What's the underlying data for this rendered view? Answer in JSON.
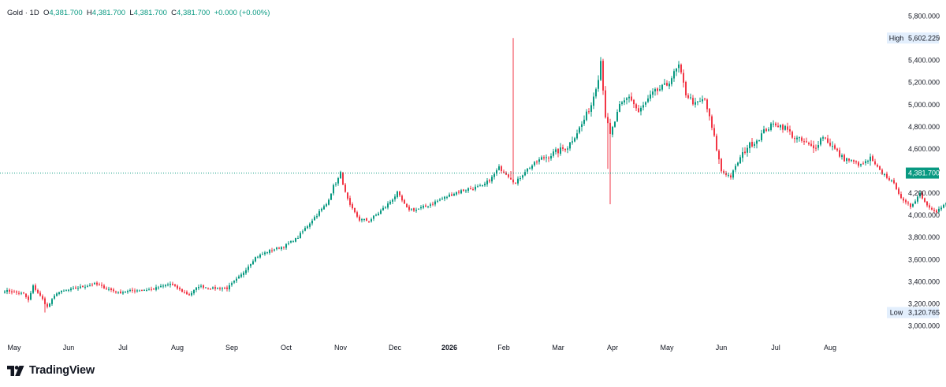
{
  "legend": {
    "symbol": "Gold",
    "separator": "·",
    "timeframe": "1D",
    "open_label": "O",
    "open": "4,381.700",
    "high_label": "H",
    "high": "4,381.700",
    "low_label": "L",
    "low": "4,381.700",
    "close_label": "C",
    "close": "4,381.700",
    "change": "+0.000 (+0.00%)"
  },
  "brand": {
    "name": "TradingView",
    "icon": "tradingview-logo-icon"
  },
  "colors": {
    "up": "#089981",
    "down": "#f23645",
    "last_price": "#089981",
    "badge_bg": "#e3effd",
    "axis_text": "#131722"
  },
  "chart_data": {
    "type": "candlestick",
    "title": "Gold · 1D",
    "ylim": [
      2900,
      5900
    ],
    "y_ticks": [
      "5,800.000",
      "5,600.000",
      "5,400.000",
      "5,200.000",
      "5,000.000",
      "4,800.000",
      "4,600.000",
      "4,400.000",
      "4,200.000",
      "4,000.000",
      "3,800.000",
      "3,600.000",
      "3,400.000",
      "3,200.000",
      "3,000.000"
    ],
    "y_tick_values": [
      5800,
      5600,
      5400,
      5200,
      5000,
      4800,
      4600,
      4400,
      4200,
      4000,
      3800,
      3600,
      3400,
      3200,
      3000
    ],
    "x_labels": [
      "May",
      "Jun",
      "Jul",
      "Aug",
      "Sep",
      "Oct",
      "Nov",
      "Dec",
      "2026",
      "Feb",
      "Mar",
      "Apr",
      "May",
      "Jun",
      "Jul",
      "Aug"
    ],
    "x_label_index": [
      0,
      23,
      46,
      69,
      92,
      115,
      138,
      161,
      184,
      207,
      230,
      253,
      276,
      299,
      322,
      345
    ],
    "last_price": {
      "label": "4,381.700",
      "value": 4381.7
    },
    "high": {
      "label": "High",
      "value_label": "5,602.225",
      "value": 5602.225
    },
    "low": {
      "label": "Low",
      "value_label": "3,120.765",
      "value": 3120.765
    },
    "grid": false,
    "close_anchors": [
      [
        0,
        3320
      ],
      [
        8,
        3290
      ],
      [
        10,
        3230
      ],
      [
        12,
        3360
      ],
      [
        16,
        3240
      ],
      [
        18,
        3170
      ],
      [
        22,
        3300
      ],
      [
        30,
        3340
      ],
      [
        38,
        3380
      ],
      [
        48,
        3300
      ],
      [
        54,
        3320
      ],
      [
        62,
        3330
      ],
      [
        70,
        3380
      ],
      [
        76,
        3300
      ],
      [
        78,
        3280
      ],
      [
        82,
        3360
      ],
      [
        88,
        3340
      ],
      [
        94,
        3340
      ],
      [
        100,
        3460
      ],
      [
        106,
        3620
      ],
      [
        112,
        3680
      ],
      [
        118,
        3720
      ],
      [
        124,
        3800
      ],
      [
        130,
        3960
      ],
      [
        136,
        4100
      ],
      [
        139,
        4260
      ],
      [
        141,
        4330
      ],
      [
        142,
        4380
      ],
      [
        144,
        4200
      ],
      [
        146,
        4080
      ],
      [
        150,
        3960
      ],
      [
        154,
        3950
      ],
      [
        158,
        4020
      ],
      [
        162,
        4100
      ],
      [
        166,
        4200
      ],
      [
        170,
        4060
      ],
      [
        174,
        4050
      ],
      [
        178,
        4080
      ],
      [
        184,
        4140
      ],
      [
        190,
        4200
      ],
      [
        196,
        4240
      ],
      [
        202,
        4260
      ],
      [
        206,
        4340
      ],
      [
        209,
        4430
      ],
      [
        212,
        4380
      ],
      [
        216,
        4290
      ],
      [
        220,
        4400
      ],
      [
        226,
        4500
      ],
      [
        232,
        4560
      ],
      [
        238,
        4620
      ],
      [
        244,
        4820
      ],
      [
        248,
        5000
      ],
      [
        251,
        5250
      ],
      [
        252,
        5400
      ],
      [
        254,
        4900
      ],
      [
        256,
        4720
      ],
      [
        260,
        4980
      ],
      [
        264,
        5080
      ],
      [
        268,
        4930
      ],
      [
        274,
        5100
      ],
      [
        280,
        5180
      ],
      [
        285,
        5350
      ],
      [
        288,
        5100
      ],
      [
        292,
        5000
      ],
      [
        296,
        5050
      ],
      [
        300,
        4700
      ],
      [
        303,
        4400
      ],
      [
        307,
        4350
      ],
      [
        310,
        4480
      ],
      [
        314,
        4620
      ],
      [
        318,
        4680
      ],
      [
        322,
        4780
      ],
      [
        326,
        4830
      ],
      [
        330,
        4790
      ],
      [
        334,
        4700
      ],
      [
        338,
        4660
      ],
      [
        342,
        4600
      ],
      [
        346,
        4720
      ],
      [
        350,
        4620
      ],
      [
        354,
        4520
      ],
      [
        358,
        4490
      ],
      [
        362,
        4450
      ],
      [
        366,
        4510
      ],
      [
        370,
        4400
      ],
      [
        374,
        4330
      ],
      [
        377,
        4250
      ],
      [
        380,
        4120
      ],
      [
        383,
        4080
      ],
      [
        387,
        4200
      ],
      [
        390,
        4090
      ],
      [
        394,
        4040
      ],
      [
        398,
        4100
      ],
      [
        402,
        4140
      ],
      [
        406,
        4060
      ],
      [
        410,
        4030
      ],
      [
        414,
        4080
      ],
      [
        418,
        4050
      ],
      [
        422,
        4080
      ],
      [
        426,
        4100
      ],
      [
        430,
        4090
      ],
      [
        433,
        4140
      ],
      [
        436,
        4200
      ],
      [
        440,
        4300
      ],
      [
        444,
        4360
      ],
      [
        447,
        4381.7
      ]
    ],
    "candle_count": 448
  }
}
